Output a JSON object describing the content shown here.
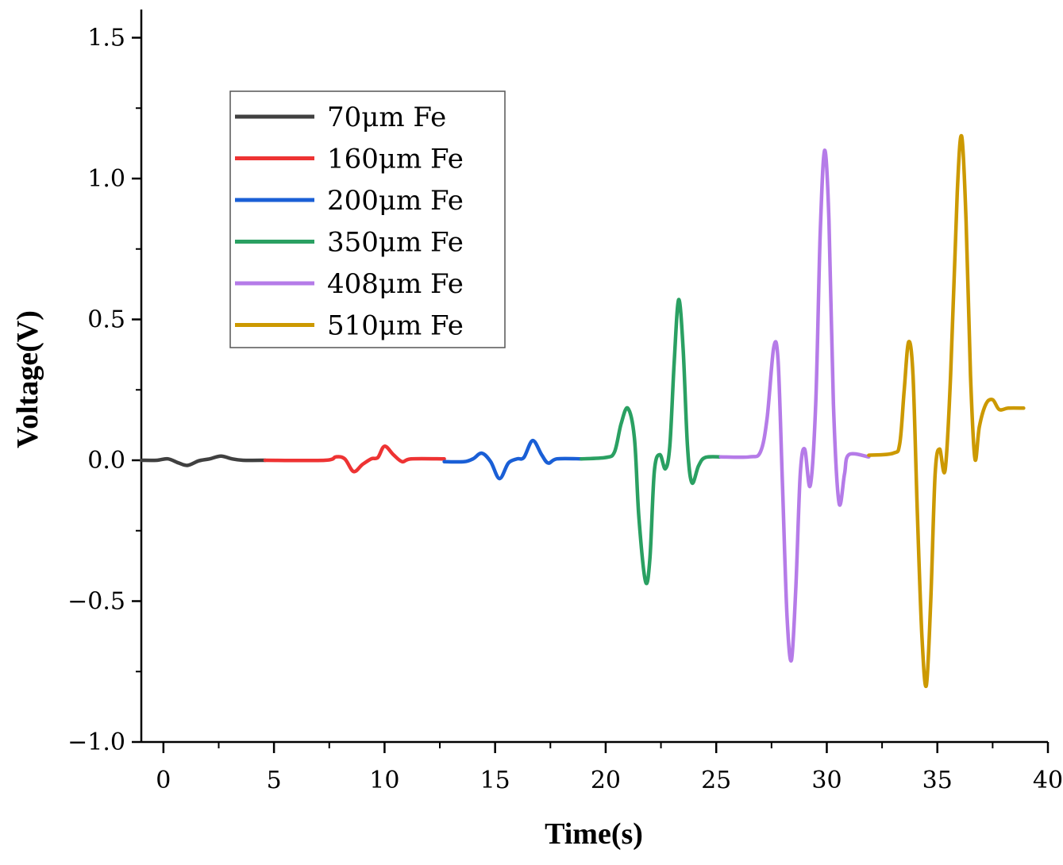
{
  "chart_data": {
    "type": "line",
    "title": "",
    "xlabel": "Time(s)",
    "ylabel": "Voltage(V)",
    "xlim": [
      -1,
      40
    ],
    "ylim": [
      -1.0,
      1.6
    ],
    "xticks": [
      0,
      5,
      10,
      15,
      20,
      25,
      30,
      35,
      40
    ],
    "xtick_labels": [
      "0",
      "5",
      "10",
      "15",
      "20",
      "25",
      "30",
      "35",
      "40"
    ],
    "yticks": [
      -1.0,
      -0.5,
      0.0,
      0.5,
      1.0,
      1.5
    ],
    "ytick_labels": [
      "−1.0",
      "−0.5",
      "0.0",
      "0.5",
      "1.0",
      "1.5"
    ],
    "grid": false,
    "legend_position": "top-left",
    "series": [
      {
        "name": "70μm Fe",
        "color": "#404040",
        "points": [
          [
            -1,
            0
          ],
          [
            -0.3,
            0
          ],
          [
            0.2,
            0.005
          ],
          [
            0.7,
            -0.01
          ],
          [
            1.1,
            -0.018
          ],
          [
            1.6,
            -0.002
          ],
          [
            2.1,
            0.005
          ],
          [
            2.6,
            0.015
          ],
          [
            3.1,
            0.005
          ],
          [
            3.6,
            0
          ],
          [
            4.6,
            0
          ]
        ]
      },
      {
        "name": "160μm Fe",
        "color": "#ee3333",
        "points": [
          [
            4.6,
            0
          ],
          [
            7.3,
            0
          ],
          [
            7.8,
            0.012
          ],
          [
            8.2,
            0.005
          ],
          [
            8.6,
            -0.04
          ],
          [
            9.0,
            -0.015
          ],
          [
            9.4,
            0.005
          ],
          [
            9.7,
            0.01
          ],
          [
            10.0,
            0.05
          ],
          [
            10.4,
            0.02
          ],
          [
            10.8,
            -0.005
          ],
          [
            11.2,
            0.005
          ],
          [
            12.7,
            0.005
          ]
        ]
      },
      {
        "name": "200μm Fe",
        "color": "#1a5fd6",
        "points": [
          [
            12.7,
            -0.005
          ],
          [
            13.6,
            -0.005
          ],
          [
            14.0,
            0.005
          ],
          [
            14.4,
            0.025
          ],
          [
            14.8,
            -0.005
          ],
          [
            15.2,
            -0.065
          ],
          [
            15.6,
            -0.01
          ],
          [
            16.0,
            0.005
          ],
          [
            16.3,
            0.01
          ],
          [
            16.7,
            0.07
          ],
          [
            17.1,
            0.02
          ],
          [
            17.4,
            -0.01
          ],
          [
            17.8,
            0.005
          ],
          [
            18.9,
            0.005
          ]
        ]
      },
      {
        "name": "350μm Fe",
        "color": "#2aa062",
        "points": [
          [
            18.9,
            0.005
          ],
          [
            20.0,
            0.01
          ],
          [
            20.4,
            0.03
          ],
          [
            20.7,
            0.13
          ],
          [
            21.0,
            0.185
          ],
          [
            21.3,
            0.08
          ],
          [
            21.5,
            -0.2
          ],
          [
            21.8,
            -0.43
          ],
          [
            22.0,
            -0.35
          ],
          [
            22.2,
            -0.04
          ],
          [
            22.45,
            0.02
          ],
          [
            22.7,
            -0.03
          ],
          [
            22.9,
            0.05
          ],
          [
            23.1,
            0.35
          ],
          [
            23.3,
            0.57
          ],
          [
            23.5,
            0.4
          ],
          [
            23.7,
            0.05
          ],
          [
            23.9,
            -0.08
          ],
          [
            24.2,
            -0.02
          ],
          [
            24.5,
            0.01
          ],
          [
            25.2,
            0.012
          ]
        ]
      },
      {
        "name": "408μm Fe",
        "color": "#b57be8",
        "points": [
          [
            25.2,
            0.012
          ],
          [
            26.5,
            0.012
          ],
          [
            27.0,
            0.03
          ],
          [
            27.3,
            0.15
          ],
          [
            27.6,
            0.4
          ],
          [
            27.8,
            0.35
          ],
          [
            28.0,
            -0.1
          ],
          [
            28.2,
            -0.55
          ],
          [
            28.4,
            -0.71
          ],
          [
            28.6,
            -0.45
          ],
          [
            28.8,
            -0.05
          ],
          [
            29.0,
            0.04
          ],
          [
            29.25,
            -0.09
          ],
          [
            29.5,
            0.2
          ],
          [
            29.7,
            0.8
          ],
          [
            29.9,
            1.1
          ],
          [
            30.1,
            0.85
          ],
          [
            30.3,
            0.2
          ],
          [
            30.55,
            -0.15
          ],
          [
            30.8,
            -0.05
          ],
          [
            31.0,
            0.02
          ],
          [
            31.9,
            0.012
          ]
        ]
      },
      {
        "name": "510μm Fe",
        "color": "#cc9900",
        "points": [
          [
            31.9,
            0.018
          ],
          [
            33.0,
            0.025
          ],
          [
            33.3,
            0.06
          ],
          [
            33.5,
            0.25
          ],
          [
            33.7,
            0.42
          ],
          [
            33.9,
            0.3
          ],
          [
            34.1,
            -0.2
          ],
          [
            34.3,
            -0.62
          ],
          [
            34.5,
            -0.8
          ],
          [
            34.7,
            -0.5
          ],
          [
            34.9,
            -0.05
          ],
          [
            35.1,
            0.04
          ],
          [
            35.35,
            -0.035
          ],
          [
            35.6,
            0.3
          ],
          [
            35.9,
            0.95
          ],
          [
            36.1,
            1.15
          ],
          [
            36.3,
            0.85
          ],
          [
            36.5,
            0.3
          ],
          [
            36.7,
            0.005
          ],
          [
            36.9,
            0.12
          ],
          [
            37.2,
            0.2
          ],
          [
            37.5,
            0.215
          ],
          [
            37.8,
            0.18
          ],
          [
            38.2,
            0.185
          ],
          [
            38.9,
            0.185
          ]
        ]
      }
    ]
  }
}
